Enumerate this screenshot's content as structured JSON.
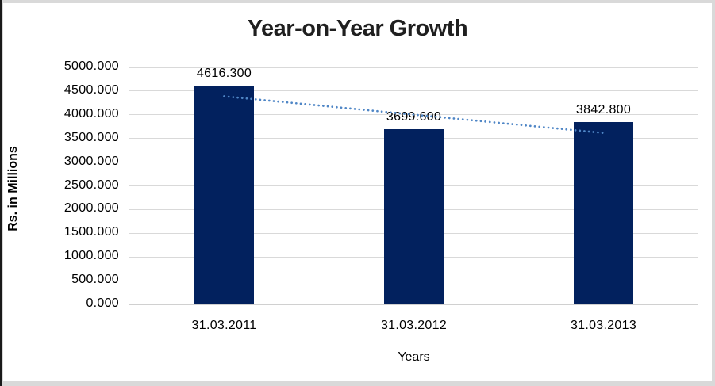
{
  "chart_data": {
    "type": "bar",
    "title": "Year-on-Year Growth",
    "categories": [
      "31.03.2011",
      "31.03.2012",
      "31.03.2013"
    ],
    "values": [
      4616.3,
      3699.6,
      3842.8
    ],
    "data_labels": [
      "4616.300",
      "3699.600",
      "3842.800"
    ],
    "xlabel": "Years",
    "ylabel": "Rs. in Millions",
    "ylim": [
      0,
      5000
    ],
    "ytick_step": 500,
    "ytick_labels": [
      "0.000",
      "500.000",
      "1000.000",
      "1500.000",
      "2000.000",
      "2500.000",
      "3000.000",
      "3500.000",
      "4000.000",
      "4500.000",
      "5000.000"
    ],
    "grid": true,
    "legend": false,
    "trendline": {
      "type": "linear",
      "style": "dotted"
    }
  },
  "colors": {
    "bar": "#02215E",
    "trendline": "#4F86C6",
    "gridline": "#D9D9D9",
    "axis_line": "#D0D0D0",
    "title_text": "#1F1F1F",
    "label_text": "#000000",
    "frame_border": "#D9D9D9",
    "frame_edge_dark": "#1A1A1A",
    "background": "#FFFFFF"
  }
}
